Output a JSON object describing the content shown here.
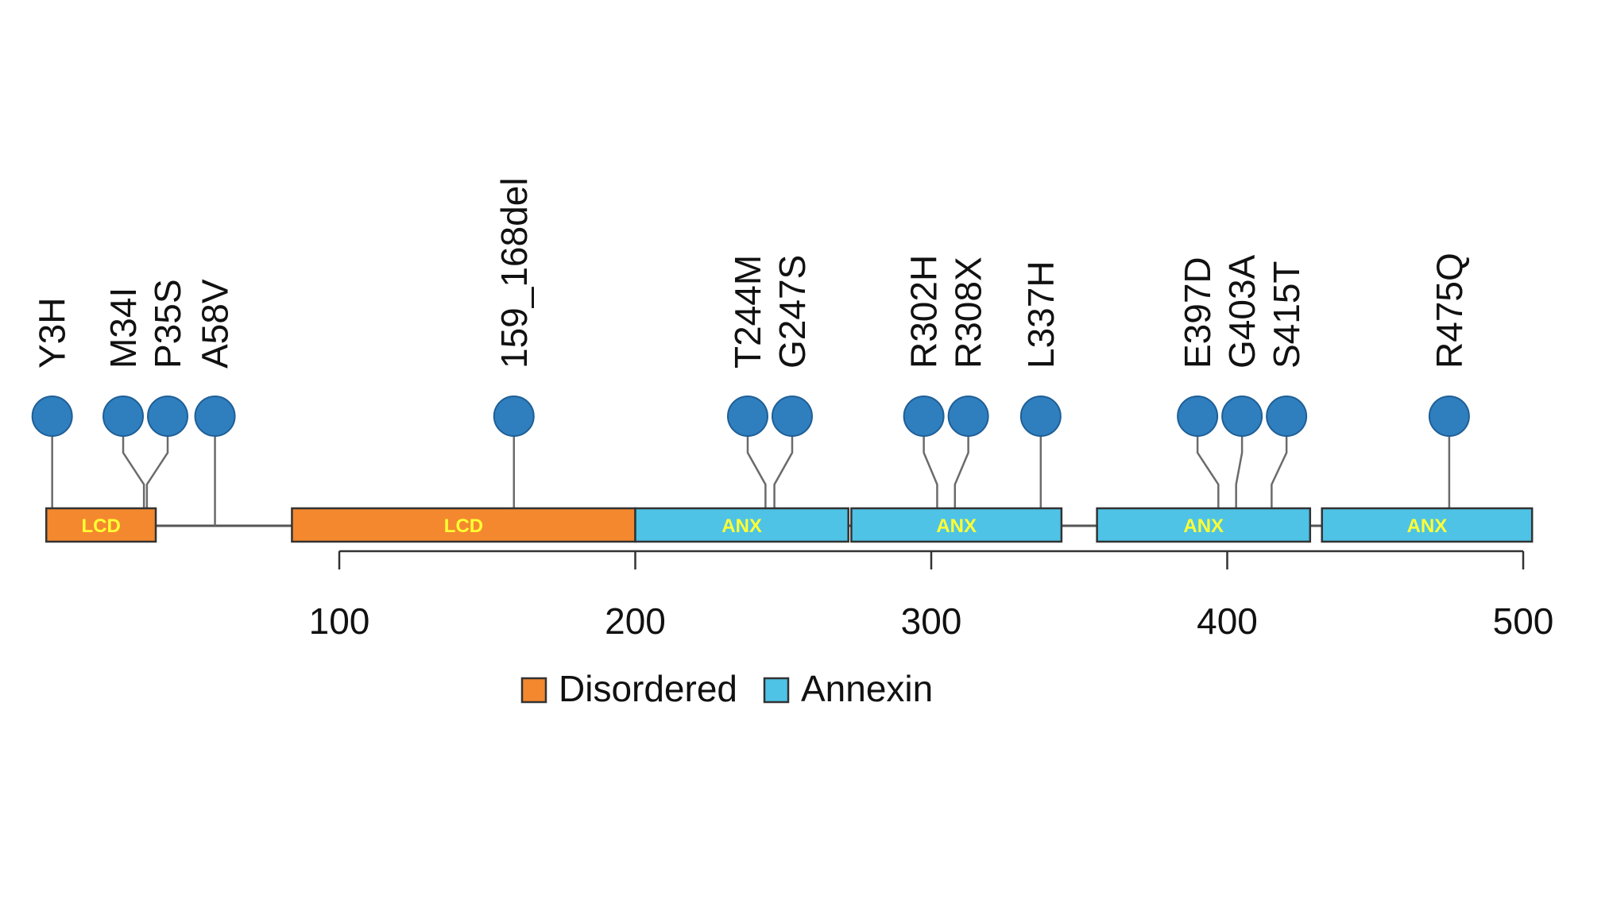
{
  "chart_data": {
    "type": "lollipop",
    "axis": {
      "ticks": [
        100,
        200,
        300,
        400,
        500
      ]
    },
    "legend": {
      "placement": "bottom-center",
      "items": [
        {
          "label": "Disordered",
          "color": "#f4882f"
        },
        {
          "label": "Annexin",
          "color": "#4ec3e6"
        }
      ]
    },
    "label_color": "#ffff33",
    "domains": [
      {
        "label": "LCD",
        "type": "Disordered",
        "start": 1,
        "end": 38
      },
      {
        "label": "LCD",
        "type": "Disordered",
        "start": 84,
        "end": 200
      },
      {
        "label": "ANX",
        "type": "Annexin",
        "start": 200,
        "end": 272
      },
      {
        "label": "ANX",
        "type": "Annexin",
        "start": 273,
        "end": 344
      },
      {
        "label": "ANX",
        "type": "Annexin",
        "start": 356,
        "end": 428
      },
      {
        "label": "ANX",
        "type": "Annexin",
        "start": 432,
        "end": 503
      }
    ],
    "mutations": [
      {
        "label": "Y3H",
        "position": 3
      },
      {
        "label": "M34I",
        "position": 34
      },
      {
        "label": "P35S",
        "position": 35
      },
      {
        "label": "A58V",
        "position": 58
      },
      {
        "label": "159_168del",
        "position": 159
      },
      {
        "label": "T244M",
        "position": 244
      },
      {
        "label": "G247S",
        "position": 247
      },
      {
        "label": "R302H",
        "position": 302
      },
      {
        "label": "R308X",
        "position": 308
      },
      {
        "label": "L337H",
        "position": 337
      },
      {
        "label": "E397D",
        "position": 397
      },
      {
        "label": "G403A",
        "position": 403
      },
      {
        "label": "S415T",
        "position": 415
      },
      {
        "label": "R475Q",
        "position": 475
      }
    ]
  }
}
